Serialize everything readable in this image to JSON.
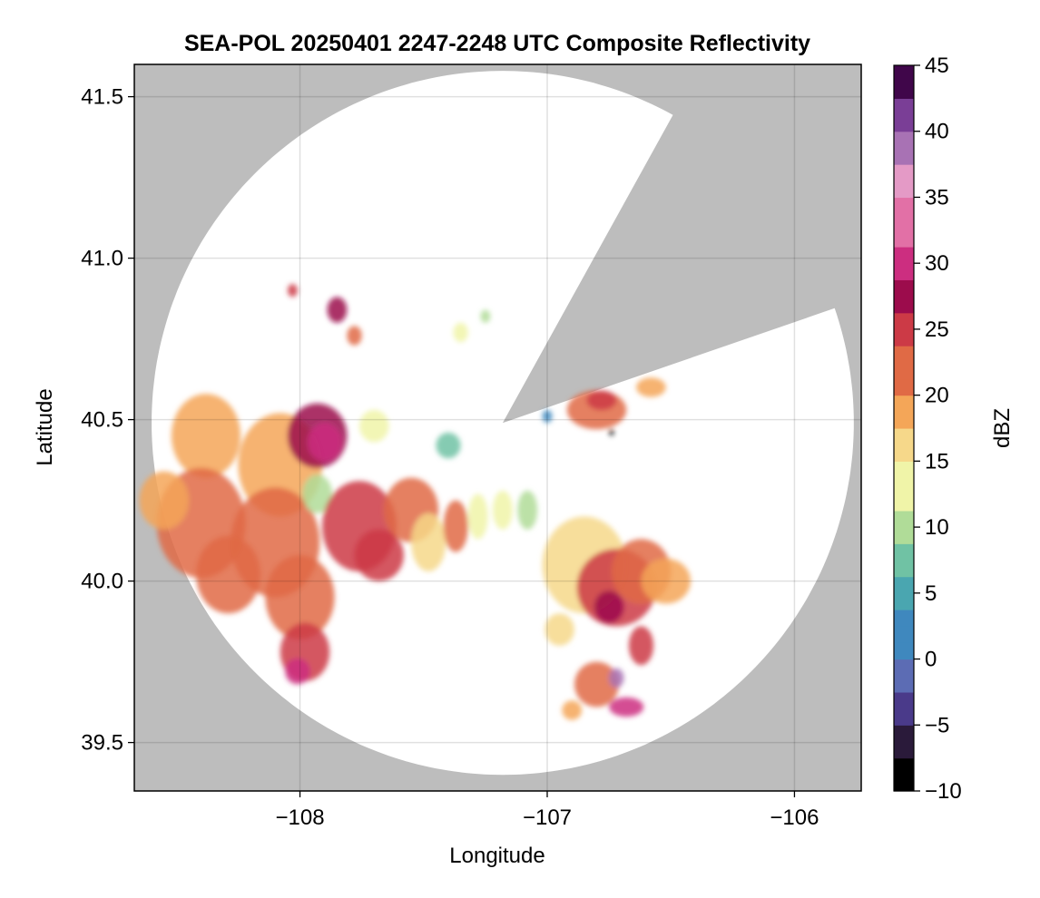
{
  "chart_data": {
    "type": "heatmap",
    "title": "SEA-POL 20250401 2247-2248 UTC Composite Reflectivity",
    "xlabel": "Longitude",
    "ylabel": "Latitude",
    "xlim": [
      -108.67,
      -105.73
    ],
    "ylim": [
      39.35,
      41.6
    ],
    "xticks": [
      -108,
      -107,
      -106
    ],
    "xtick_labels": [
      "−108",
      "−107",
      "−106"
    ],
    "yticks": [
      39.5,
      40.0,
      40.5,
      41.0,
      41.5
    ],
    "ytick_labels": [
      "39.5",
      "40.0",
      "40.5",
      "41.0",
      "41.5"
    ],
    "grid": true,
    "background_color": "#bdbdbd",
    "radar": {
      "center_lon": -107.18,
      "center_lat": 40.49,
      "range_lon": 1.42,
      "range_lat": 1.09,
      "blocked_sectors": [
        [
          19,
          61
        ]
      ]
    },
    "colorbar": {
      "label": "dBZ",
      "vmin": -10,
      "vmax": 45,
      "step": 1.25,
      "ticks": [
        -10,
        -5,
        0,
        5,
        10,
        15,
        20,
        25,
        30,
        35,
        40,
        45
      ],
      "tick_labels": [
        "−10",
        "−5",
        "0",
        "5",
        "10",
        "15",
        "20",
        "25",
        "30",
        "35",
        "40",
        "45"
      ],
      "colormap": [
        "#000000",
        "#2a1a3a",
        "#4a3a8a",
        "#5c6cb4",
        "#3f88be",
        "#4aa6b0",
        "#70c2a4",
        "#b0dc98",
        "#f0f4a8",
        "#f6d88a",
        "#f4a658",
        "#e06a45",
        "#cc3a46",
        "#9c0c4c",
        "#cc2e80",
        "#e270a6",
        "#e49ac6",
        "#a872b4",
        "#7a3e96",
        "#40064a"
      ]
    },
    "echoes": [
      {
        "lon": -108.38,
        "lat": 40.45,
        "rx": 0.14,
        "ry": 0.13,
        "dbz": 20
      },
      {
        "lon": -108.4,
        "lat": 40.18,
        "rx": 0.18,
        "ry": 0.17,
        "dbz": 21
      },
      {
        "lon": -108.29,
        "lat": 40.02,
        "rx": 0.13,
        "ry": 0.12,
        "dbz": 22
      },
      {
        "lon": -108.55,
        "lat": 40.25,
        "rx": 0.1,
        "ry": 0.09,
        "dbz": 19
      },
      {
        "lon": -108.08,
        "lat": 40.36,
        "rx": 0.17,
        "ry": 0.16,
        "dbz": 19
      },
      {
        "lon": -107.93,
        "lat": 40.45,
        "rx": 0.12,
        "ry": 0.1,
        "dbz": 27
      },
      {
        "lon": -107.9,
        "lat": 40.43,
        "rx": 0.07,
        "ry": 0.06,
        "dbz": 31
      },
      {
        "lon": -108.1,
        "lat": 40.12,
        "rx": 0.18,
        "ry": 0.17,
        "dbz": 21
      },
      {
        "lon": -108.0,
        "lat": 39.95,
        "rx": 0.14,
        "ry": 0.13,
        "dbz": 22
      },
      {
        "lon": -107.98,
        "lat": 39.78,
        "rx": 0.1,
        "ry": 0.09,
        "dbz": 25
      },
      {
        "lon": -108.01,
        "lat": 39.72,
        "rx": 0.05,
        "ry": 0.04,
        "dbz": 31
      },
      {
        "lon": -107.93,
        "lat": 40.27,
        "rx": 0.06,
        "ry": 0.06,
        "dbz": 11
      },
      {
        "lon": -107.76,
        "lat": 40.17,
        "rx": 0.15,
        "ry": 0.14,
        "dbz": 24
      },
      {
        "lon": -107.68,
        "lat": 40.08,
        "rx": 0.1,
        "ry": 0.08,
        "dbz": 26
      },
      {
        "lon": -107.55,
        "lat": 40.22,
        "rx": 0.11,
        "ry": 0.1,
        "dbz": 21
      },
      {
        "lon": -107.48,
        "lat": 40.12,
        "rx": 0.07,
        "ry": 0.09,
        "dbz": 17
      },
      {
        "lon": -107.37,
        "lat": 40.17,
        "rx": 0.05,
        "ry": 0.08,
        "dbz": 21
      },
      {
        "lon": -107.28,
        "lat": 40.2,
        "rx": 0.04,
        "ry": 0.07,
        "dbz": 14
      },
      {
        "lon": -107.18,
        "lat": 40.22,
        "rx": 0.04,
        "ry": 0.06,
        "dbz": 12
      },
      {
        "lon": -107.08,
        "lat": 40.22,
        "rx": 0.04,
        "ry": 0.06,
        "dbz": 10
      },
      {
        "lon": -107.4,
        "lat": 40.42,
        "rx": 0.05,
        "ry": 0.04,
        "dbz": 8
      },
      {
        "lon": -107.7,
        "lat": 40.48,
        "rx": 0.06,
        "ry": 0.05,
        "dbz": 14
      },
      {
        "lon": -107.85,
        "lat": 40.84,
        "rx": 0.04,
        "ry": 0.04,
        "dbz": 27
      },
      {
        "lon": -107.78,
        "lat": 40.76,
        "rx": 0.03,
        "ry": 0.03,
        "dbz": 21
      },
      {
        "lon": -108.03,
        "lat": 40.9,
        "rx": 0.02,
        "ry": 0.02,
        "dbz": 26
      },
      {
        "lon": -107.25,
        "lat": 40.82,
        "rx": 0.02,
        "ry": 0.02,
        "dbz": 11
      },
      {
        "lon": -107.35,
        "lat": 40.77,
        "rx": 0.03,
        "ry": 0.03,
        "dbz": 12
      },
      {
        "lon": -106.8,
        "lat": 40.53,
        "rx": 0.12,
        "ry": 0.06,
        "dbz": 22
      },
      {
        "lon": -106.78,
        "lat": 40.56,
        "rx": 0.06,
        "ry": 0.03,
        "dbz": 26
      },
      {
        "lon": -106.58,
        "lat": 40.6,
        "rx": 0.06,
        "ry": 0.03,
        "dbz": 18
      },
      {
        "lon": -107.0,
        "lat": 40.51,
        "rx": 0.02,
        "ry": 0.02,
        "dbz": 3
      },
      {
        "lon": -106.74,
        "lat": 40.46,
        "rx": 0.01,
        "ry": 0.01,
        "dbz": -9
      },
      {
        "lon": -106.85,
        "lat": 40.05,
        "rx": 0.17,
        "ry": 0.15,
        "dbz": 17
      },
      {
        "lon": -106.72,
        "lat": 39.98,
        "rx": 0.16,
        "ry": 0.12,
        "dbz": 26
      },
      {
        "lon": -106.62,
        "lat": 40.03,
        "rx": 0.12,
        "ry": 0.1,
        "dbz": 23
      },
      {
        "lon": -106.52,
        "lat": 40.0,
        "rx": 0.1,
        "ry": 0.07,
        "dbz": 20
      },
      {
        "lon": -106.75,
        "lat": 39.92,
        "rx": 0.06,
        "ry": 0.05,
        "dbz": 28
      },
      {
        "lon": -106.62,
        "lat": 39.8,
        "rx": 0.05,
        "ry": 0.06,
        "dbz": 26
      },
      {
        "lon": -106.8,
        "lat": 39.68,
        "rx": 0.09,
        "ry": 0.07,
        "dbz": 21
      },
      {
        "lon": -106.72,
        "lat": 39.7,
        "rx": 0.03,
        "ry": 0.03,
        "dbz": 38
      },
      {
        "lon": -106.68,
        "lat": 39.61,
        "rx": 0.07,
        "ry": 0.03,
        "dbz": 31
      },
      {
        "lon": -106.9,
        "lat": 39.6,
        "rx": 0.04,
        "ry": 0.03,
        "dbz": 19
      },
      {
        "lon": -106.95,
        "lat": 39.85,
        "rx": 0.06,
        "ry": 0.05,
        "dbz": 16
      }
    ]
  }
}
